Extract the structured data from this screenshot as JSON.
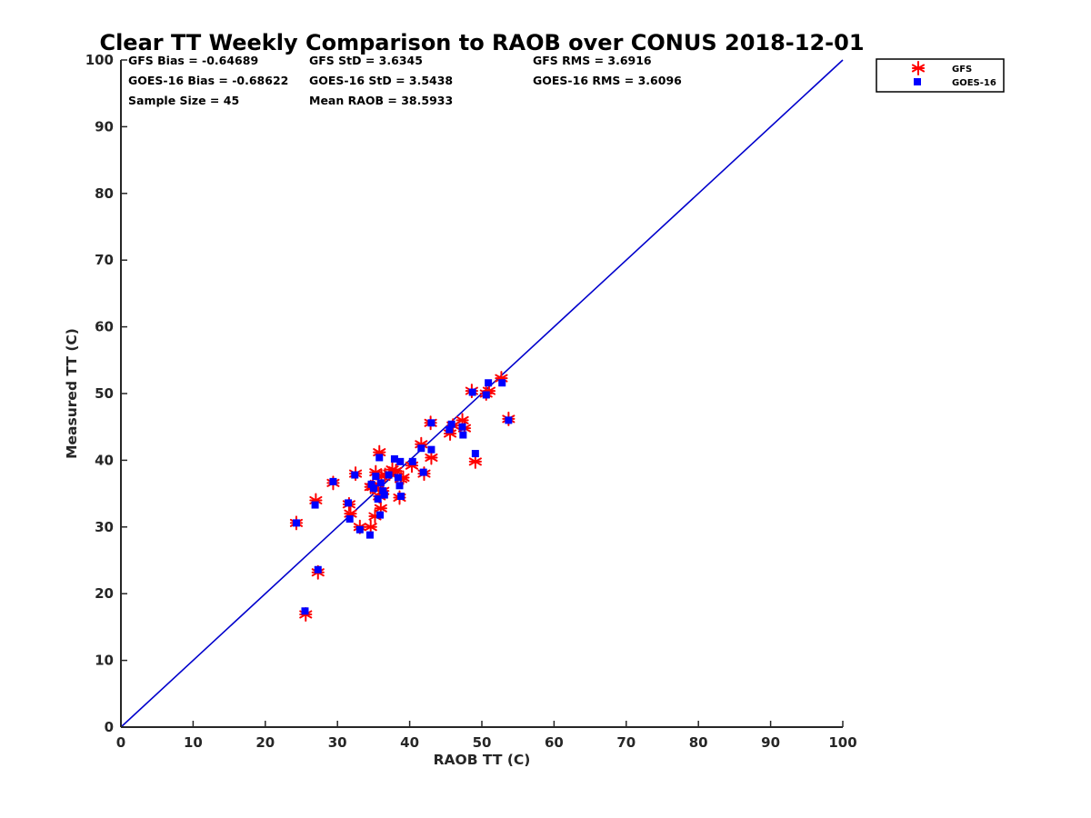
{
  "chart_data": {
    "type": "scatter",
    "title": "Clear TT Weekly Comparison to RAOB over CONUS 2018-12-01",
    "xlabel": "RAOB TT (C)",
    "ylabel": "Measured TT (C)",
    "xlim": [
      0,
      100
    ],
    "ylim": [
      0,
      100
    ],
    "xticks": [
      "0",
      "10",
      "20",
      "30",
      "40",
      "50",
      "60",
      "70",
      "80",
      "90",
      "100"
    ],
    "yticks": [
      "0",
      "10",
      "20",
      "30",
      "40",
      "50",
      "60",
      "70",
      "80",
      "90",
      "100"
    ],
    "grid": false,
    "reference_line": {
      "name": "1:1 line",
      "x": [
        0,
        100
      ],
      "y": [
        0,
        100
      ],
      "color": "#0000cc"
    },
    "stats": {
      "gfs_bias": "GFS Bias = -0.64689",
      "gfs_std": "GFS StD = 3.6345",
      "gfs_rms": "GFS RMS = 3.6916",
      "goes_bias": "GOES-16 Bias = -0.68622",
      "goes_std": "GOES-16 StD = 3.5438",
      "goes_rms": "GOES-16 RMS = 3.6096",
      "sample_size": "Sample Size = 45",
      "mean_raob": "Mean RAOB = 38.5933"
    },
    "legend": {
      "location": "top-right outside",
      "entries": [
        "GFS",
        "GOES-16"
      ]
    },
    "series": [
      {
        "name": "GFS",
        "marker": "asterisk",
        "color": "#ff0000",
        "x": [
          24.3,
          25.6,
          27.0,
          27.3,
          29.4,
          31.6,
          31.8,
          32.5,
          33.1,
          34.6,
          34.6,
          34.9,
          35.2,
          35.3,
          35.6,
          35.8,
          35.8,
          36.0,
          36.1,
          36.3,
          36.6,
          37.2,
          37.6,
          38.1,
          38.6,
          38.8,
          39.1,
          40.3,
          41.6,
          42.0,
          42.9,
          43.0,
          45.6,
          46.0,
          47.3,
          47.6,
          48.6,
          49.1,
          50.6,
          51.0,
          52.7,
          53.7
        ],
        "y": [
          30.6,
          16.9,
          34.0,
          23.2,
          36.6,
          33.4,
          32.0,
          38.0,
          30.0,
          36.0,
          30.0,
          36.0,
          31.6,
          38.2,
          36.4,
          41.2,
          34.6,
          32.8,
          37.6,
          35.4,
          37.8,
          38.0,
          38.6,
          38.4,
          34.4,
          37.2,
          37.4,
          39.2,
          42.4,
          38.0,
          45.6,
          40.4,
          44.0,
          45.2,
          46.0,
          44.8,
          50.4,
          39.8,
          50.0,
          50.4,
          52.3,
          46.2
        ]
      },
      {
        "name": "GOES-16",
        "marker": "square",
        "color": "#0000ff",
        "x": [
          24.3,
          25.5,
          26.9,
          27.3,
          29.4,
          31.5,
          31.7,
          32.4,
          33.1,
          34.5,
          34.7,
          35.0,
          35.3,
          35.6,
          35.8,
          35.9,
          36.0,
          36.3,
          36.5,
          37.1,
          37.9,
          38.4,
          38.6,
          38.7,
          38.8,
          40.4,
          41.6,
          41.9,
          43.0,
          43.0,
          45.5,
          45.8,
          47.3,
          47.4,
          48.7,
          49.1,
          50.6,
          50.9,
          52.8,
          53.7
        ],
        "y": [
          30.6,
          17.4,
          33.3,
          23.6,
          36.8,
          33.6,
          31.2,
          37.8,
          29.6,
          28.8,
          36.4,
          35.8,
          37.6,
          34.2,
          40.4,
          31.8,
          36.6,
          35.4,
          34.8,
          37.8,
          40.2,
          37.4,
          36.2,
          39.8,
          34.6,
          39.8,
          41.8,
          38.2,
          45.6,
          41.6,
          44.6,
          45.4,
          45.0,
          43.8,
          50.2,
          41.0,
          49.8,
          51.6,
          51.6,
          46.0
        ]
      }
    ]
  }
}
